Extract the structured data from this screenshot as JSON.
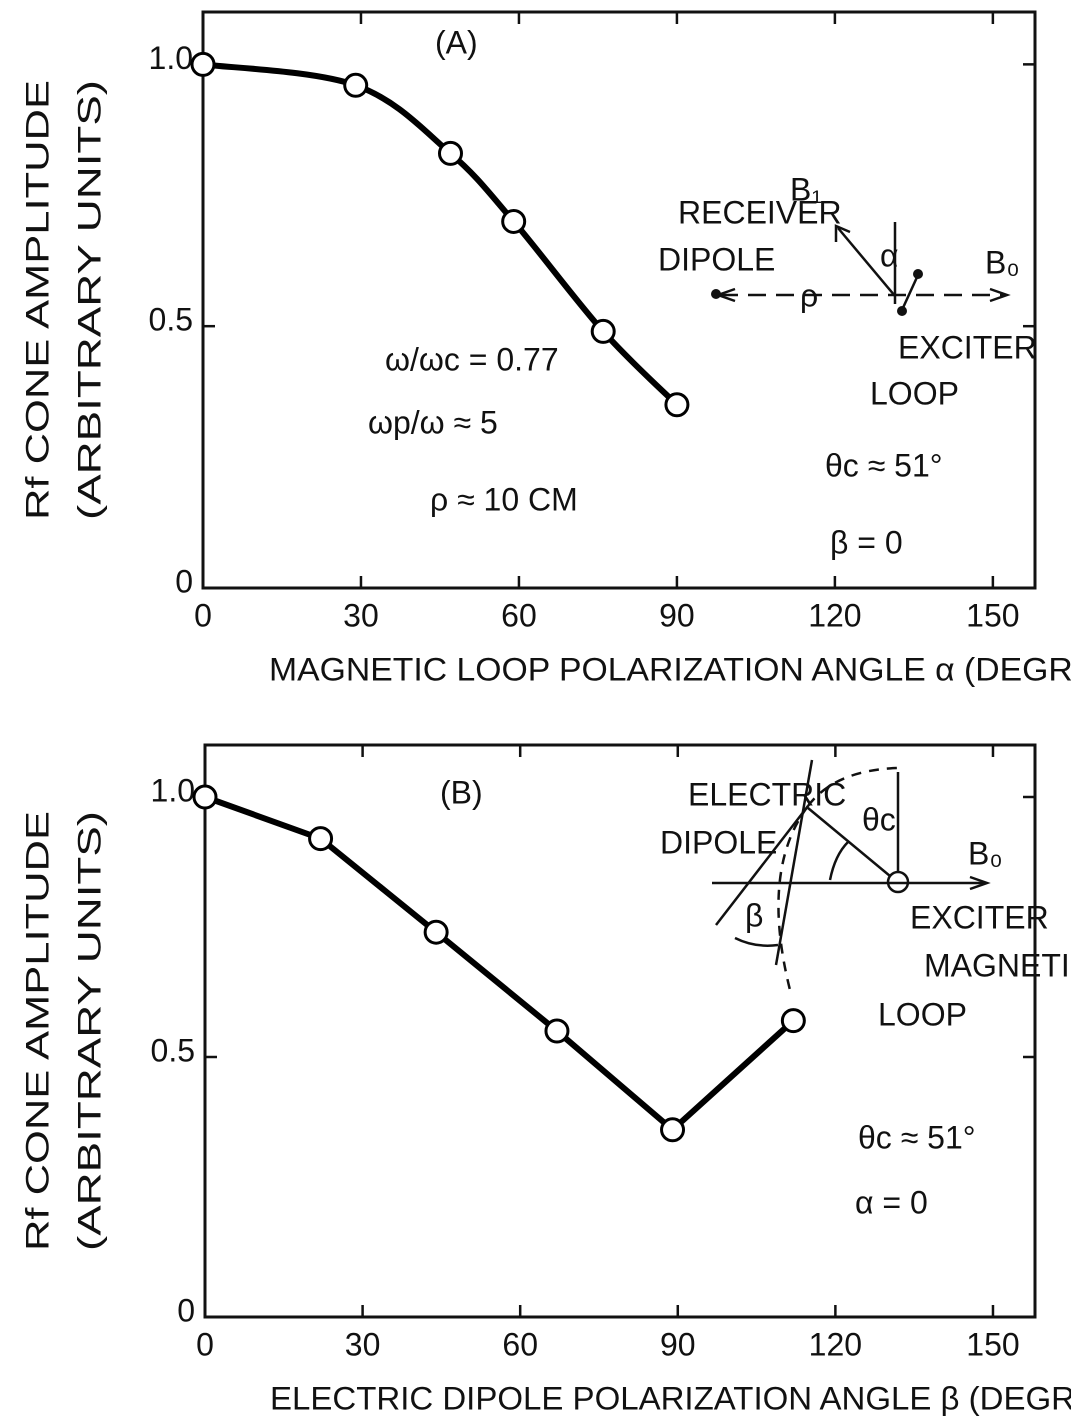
{
  "chart_data": [
    {
      "type": "line",
      "smooth": true,
      "ylabel": [
        "Rf CONE AMPLITUDE",
        "(ARBITRARY UNITS)"
      ],
      "xlabel": "MAGNETIC LOOP POLARIZATION ANGLE α (DEGREE)",
      "x": [
        0,
        29,
        47,
        59,
        76,
        90
      ],
      "values": [
        1.0,
        0.96,
        0.83,
        0.7,
        0.49,
        0.35
      ],
      "xlim": [
        0,
        158
      ],
      "ylim": [
        0,
        1.1
      ],
      "xticks": [
        0,
        30,
        60,
        90,
        120,
        150
      ],
      "yticks": [
        0,
        0.5,
        {
          "value": 1,
          "label": "1.0"
        }
      ],
      "color": "#000000",
      "annotations": [
        "(A)",
        "RECEIVER",
        "DIPOLE",
        "B₁",
        "B₀",
        "ρ",
        "α",
        "EXCITER",
        "LOOP",
        "ω/ωc = 0.77",
        "ωp/ω ≈ 5",
        "ρ ≈ 10 CM",
        "θc ≈ 51°",
        "β = 0"
      ]
    },
    {
      "type": "line",
      "smooth": false,
      "ylabel": [
        "Rf CONE AMPLITUDE",
        "(ARBITRARY UNITS)"
      ],
      "xlabel": "ELECTRIC DIPOLE POLARIZATION ANGLE β (DEGREE)",
      "x": [
        0,
        22,
        44,
        67,
        89,
        112
      ],
      "values": [
        1.0,
        0.92,
        0.74,
        0.55,
        0.36,
        0.57
      ],
      "xlim": [
        0,
        158
      ],
      "ylim": [
        0,
        1.1
      ],
      "xticks": [
        0,
        30,
        60,
        90,
        120,
        150
      ],
      "yticks": [
        0,
        0.5,
        {
          "value": 1,
          "label": "1.0"
        }
      ],
      "color": "#000000",
      "annotations": [
        "(B)",
        "ELECTRIC",
        "DIPOLE",
        "θc",
        "B₀",
        "β",
        "EXCITER",
        "MAGNETIC",
        "LOOP",
        "θc ≈ 51°",
        "α = 0"
      ]
    }
  ]
}
